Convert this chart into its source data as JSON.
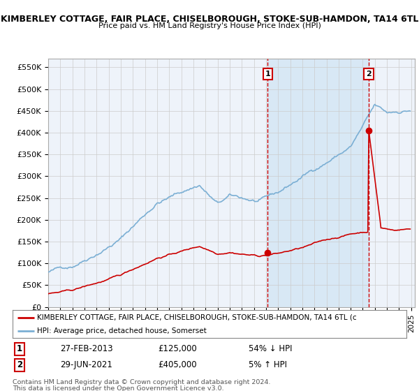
{
  "title_line1": "KIMBERLEY COTTAGE, FAIR PLACE, CHISELBOROUGH, STOKE-SUB-HAMDON, TA14 6TL",
  "title_line2": "Price paid vs. HM Land Registry's House Price Index (HPI)",
  "ylabel_ticks": [
    "£0",
    "£50K",
    "£100K",
    "£150K",
    "£200K",
    "£250K",
    "£300K",
    "£350K",
    "£400K",
    "£450K",
    "£500K",
    "£550K"
  ],
  "ytick_vals": [
    0,
    50000,
    100000,
    150000,
    200000,
    250000,
    300000,
    350000,
    400000,
    450000,
    500000,
    550000
  ],
  "xlim_start": 1995.5,
  "xlim_end": 2025.3,
  "ylim": [
    0,
    570000
  ],
  "transaction1": {
    "date_num": 2013.15,
    "price": 125000,
    "label": "1"
  },
  "transaction2": {
    "date_num": 2021.49,
    "price": 405000,
    "label": "2"
  },
  "legend_entry1": "KIMBERLEY COTTAGE, FAIR PLACE, CHISELBOROUGH, STOKE-SUB-HAMDON, TA14 6TL (c",
  "legend_entry2": "HPI: Average price, detached house, Somerset",
  "table_row1": [
    "1",
    "27-FEB-2013",
    "£125,000",
    "54% ↓ HPI"
  ],
  "table_row2": [
    "2",
    "29-JUN-2021",
    "£405,000",
    "5% ↑ HPI"
  ],
  "footnote1": "Contains HM Land Registry data © Crown copyright and database right 2024.",
  "footnote2": "This data is licensed under the Open Government Licence v3.0.",
  "hpi_color": "#7bafd4",
  "price_color": "#cc0000",
  "dashed_color": "#cc0000",
  "bg_color": "#ffffff",
  "plot_bg": "#eef3fa",
  "grid_color": "#cccccc",
  "shade_color": "#d8e8f5"
}
